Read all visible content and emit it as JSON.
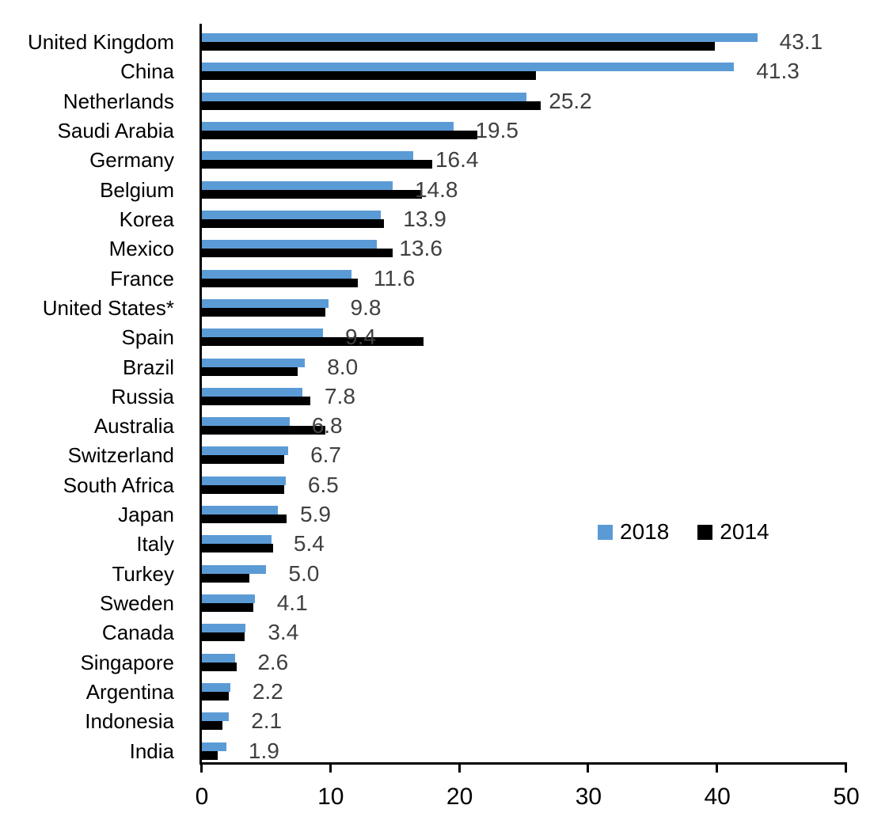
{
  "chart_data": {
    "type": "bar",
    "orientation": "horizontal",
    "title": "",
    "xlabel": "",
    "ylabel": "",
    "xlim": [
      0,
      50
    ],
    "x_ticks": [
      0,
      10,
      20,
      30,
      40,
      50
    ],
    "grid": false,
    "legend": {
      "position": "center-right",
      "entries": [
        "2018",
        "2014"
      ]
    },
    "categories": [
      "United Kingdom",
      "China",
      "Netherlands",
      "Saudi Arabia",
      "Germany",
      "Belgium",
      "Korea",
      "Mexico",
      "France",
      "United States*",
      "Spain",
      "Brazil",
      "Russia",
      "Australia",
      "Switzerland",
      "South Africa",
      "Japan",
      "Italy",
      "Turkey",
      "Sweden",
      "Canada",
      "Singapore",
      "Argentina",
      "Indonesia",
      "India"
    ],
    "series": [
      {
        "name": "2018",
        "color": "#5B9BD5",
        "values": [
          43.1,
          41.3,
          25.2,
          19.5,
          16.4,
          14.8,
          13.9,
          13.6,
          11.6,
          9.8,
          9.4,
          8.0,
          7.8,
          6.8,
          6.7,
          6.5,
          5.9,
          5.4,
          5.0,
          4.1,
          3.4,
          2.6,
          2.2,
          2.1,
          1.9
        ],
        "data_labels": [
          "43.1",
          "41.3",
          "25.2",
          "19.5",
          "16.4",
          "14.8",
          "13.9",
          "13.6",
          "11.6",
          "9.8",
          "9.4",
          "8.0",
          "7.8",
          "6.8",
          "6.7",
          "6.5",
          "5.9",
          "5.4",
          "5.0",
          "4.1",
          "3.4",
          "2.6",
          "2.2",
          "2.1",
          "1.9"
        ]
      },
      {
        "name": "2014",
        "color": "#000000",
        "values": [
          39.8,
          25.9,
          26.3,
          21.4,
          17.9,
          17.1,
          14.1,
          14.8,
          12.1,
          9.6,
          17.2,
          7.4,
          8.4,
          9.6,
          6.4,
          6.4,
          6.6,
          5.5,
          3.7,
          4.0,
          3.3,
          2.7,
          2.1,
          1.6,
          1.2
        ]
      }
    ],
    "colors": {
      "series_2018": "#5B9BD5",
      "series_2014": "#000000",
      "value_label": "#404040",
      "axis": "#000000",
      "background": "#FFFFFF"
    }
  }
}
